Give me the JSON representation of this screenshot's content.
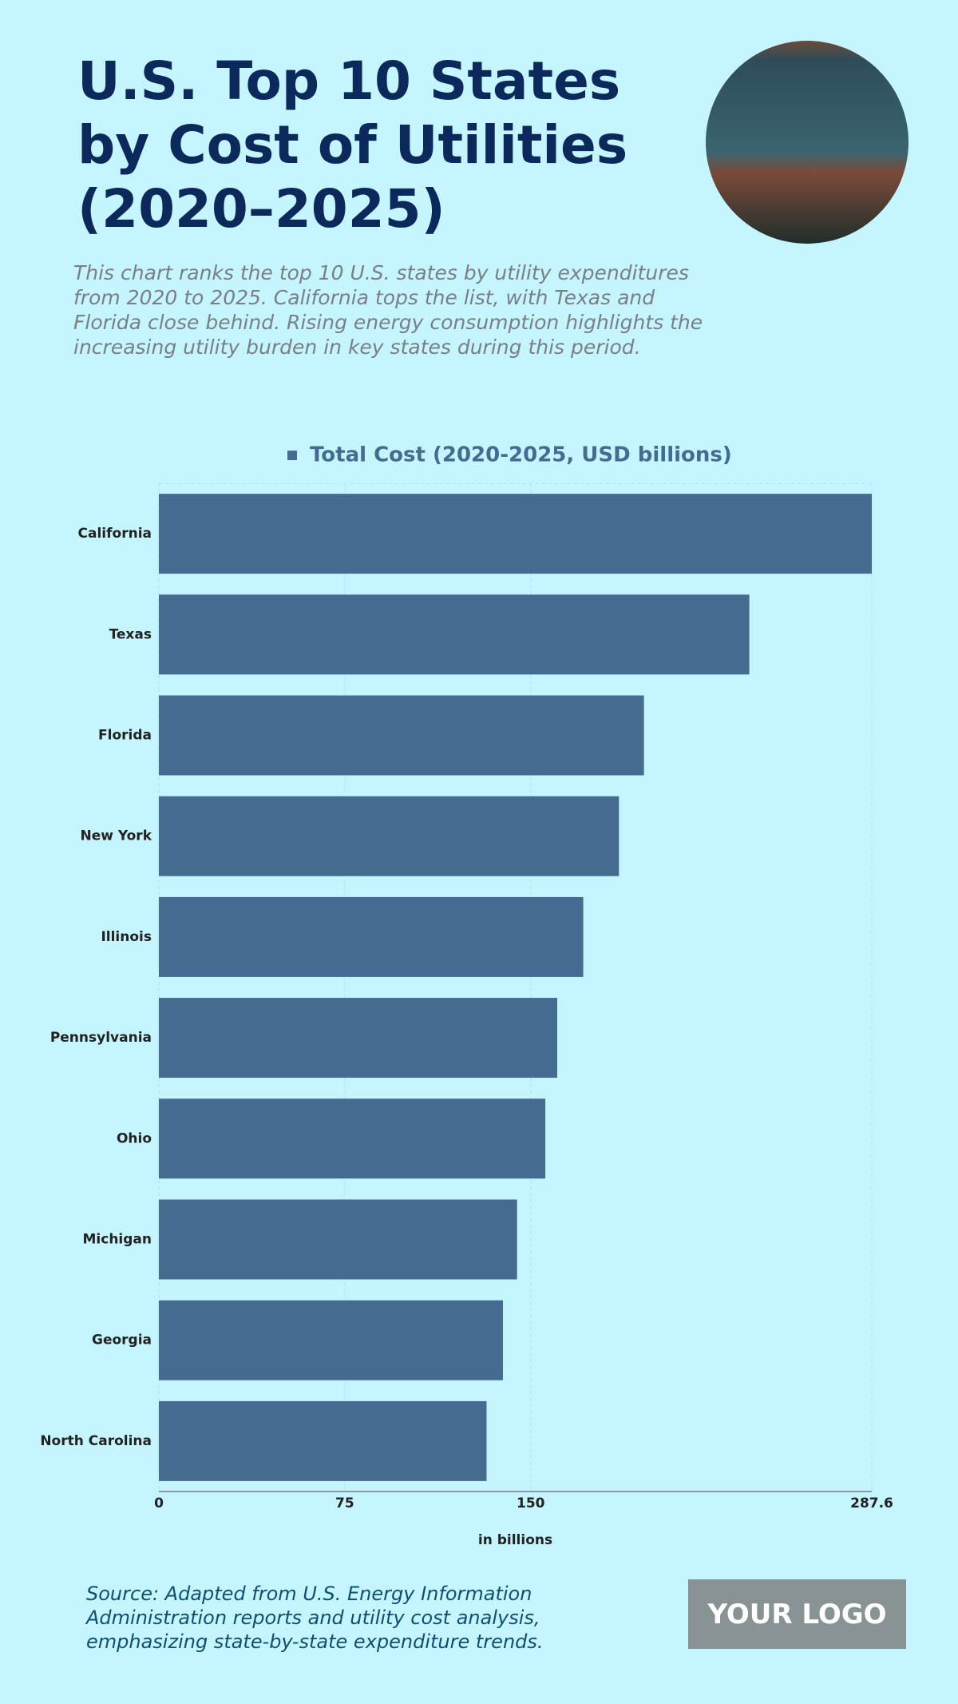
{
  "chart_data": {
    "type": "bar",
    "orientation": "horizontal",
    "title": "U.S. Top 10 States by Cost of Utilities (2020–2025)",
    "subtitle": "This chart ranks the top 10 U.S. states by utility expenditures from 2020 to 2025. California tops the list, with Texas and Florida close behind. Rising energy consumption highlights the increasing utility burden in key states during this period.",
    "categories": [
      "California",
      "Texas",
      "Florida",
      "New York",
      "Illinois",
      "Pennsylvania",
      "Ohio",
      "Michigan",
      "Georgia",
      "North Carolina"
    ],
    "series": [
      {
        "name": "Total Cost (2020-2025, USD billions)",
        "color": "#456b91",
        "values": [
          287.6,
          238.2,
          195.7,
          185.6,
          171.2,
          160.7,
          155.9,
          144.5,
          138.8,
          132.2
        ]
      }
    ],
    "xlabel": "in billions",
    "xlim": [
      0,
      287.6
    ],
    "xticks": [
      0,
      75,
      150,
      287.6
    ],
    "grid": true,
    "legend": "top",
    "source": "Source: Adapted from U.S. Energy Information Administration reports and utility cost analysis, emphasizing state-by-state expenditure trends.",
    "logo": "YOUR LOGO"
  }
}
